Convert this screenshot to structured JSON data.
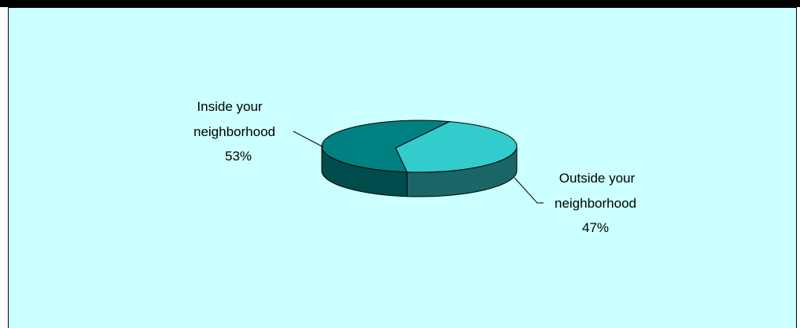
{
  "chart_data": {
    "type": "pie",
    "title": "",
    "style": "3d-pie",
    "slices": [
      {
        "label_lines": [
          "Inside your",
          "neighborhood"
        ],
        "percent_label": "53%",
        "value": 53,
        "color": "#008080"
      },
      {
        "label_lines": [
          "Outside your",
          "neighborhood"
        ],
        "percent_label": "47%",
        "value": 47,
        "color": "#33cccc"
      }
    ],
    "colors": {
      "background": "#ccffff",
      "inside_side": "#004c4c",
      "outside_side": "#1a6666"
    }
  }
}
